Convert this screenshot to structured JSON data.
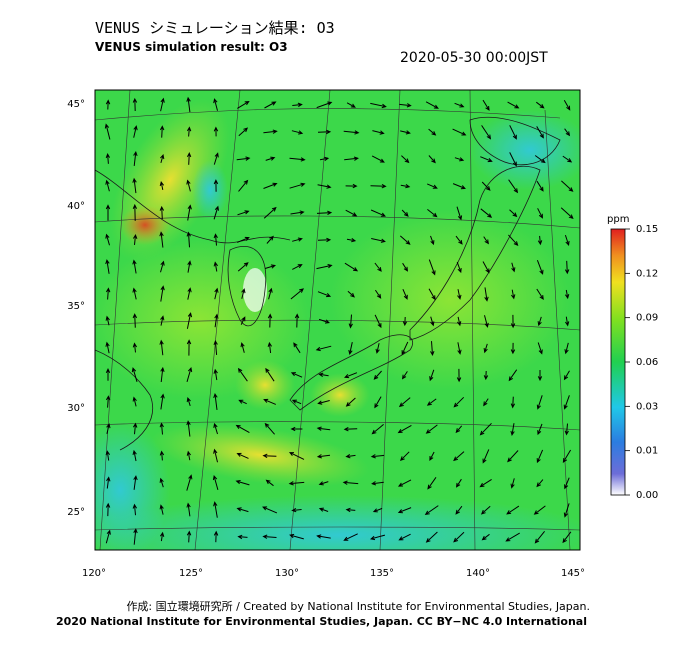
{
  "header": {
    "title": "VENUS シミュレーション結果: O3",
    "subtitle": "VENUS simulation result: O3",
    "timestamp": "2020-05-30 00:00JST"
  },
  "map": {
    "lat_labels": [
      "45°",
      "40°",
      "35°",
      "30°",
      "25°"
    ],
    "lon_labels": [
      "120°",
      "125°",
      "130°",
      "135°",
      "140°",
      "145°"
    ]
  },
  "colorbar": {
    "unit": "ppm",
    "ticks": [
      {
        "value": 0.15,
        "label": "0.15"
      },
      {
        "value": 0.12,
        "label": "0.12"
      },
      {
        "value": 0.09,
        "label": "0.09"
      },
      {
        "value": 0.06,
        "label": "0.06"
      },
      {
        "value": 0.03,
        "label": "0.03"
      },
      {
        "value": 0.01,
        "label": "0.01"
      },
      {
        "value": 0,
        "label": "0.00"
      }
    ]
  },
  "footer": {
    "credit": "作成: 国立環境研究所 / Created by National Institute for Environmental Studies, Japan.",
    "copyright": "2020 National Institute for Environmental Studies, Japan. CC BY−NC 4.0 International"
  }
}
